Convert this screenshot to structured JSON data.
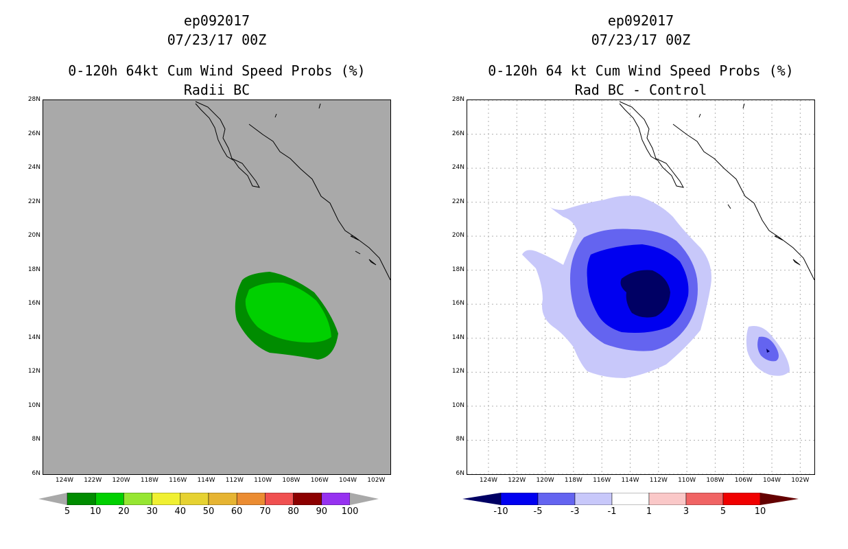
{
  "left_panel": {
    "storm_id": "ep092017",
    "datetime": "07/23/17 00Z",
    "title": "0-120h 64kt Cum Wind Speed Probs (%)",
    "subtitle": "Radii BC",
    "colorbar_labels": [
      "5",
      "10",
      "20",
      "30",
      "40",
      "50",
      "60",
      "70",
      "80",
      "90",
      "100"
    ],
    "colorbar_colors": [
      "#008c00",
      "#00d000",
      "#96e632",
      "#f0f032",
      "#e6d232",
      "#e6b432",
      "#eb8c32",
      "#f05050",
      "#8c0000",
      "#9632f0"
    ]
  },
  "right_panel": {
    "storm_id": "ep092017",
    "datetime": "07/23/17 00Z",
    "title": "0-120h 64 kt Cum Wind Speed Probs (%)",
    "subtitle": "Rad BC - Control",
    "colorbar_labels": [
      "-10",
      "-5",
      "-3",
      "-1",
      "1",
      "3",
      "5",
      "10"
    ],
    "colorbar_colors": [
      "#000064",
      "#0000f0",
      "#6464f0",
      "#c8c8fa",
      "#ffffff",
      "#fac8c8",
      "#f06464",
      "#f00000",
      "#640000"
    ]
  },
  "axes": {
    "y_ticks": [
      "28N",
      "26N",
      "24N",
      "22N",
      "20N",
      "18N",
      "16N",
      "14N",
      "12N",
      "10N",
      "8N",
      "6N"
    ],
    "x_ticks": [
      "124W",
      "122W",
      "120W",
      "118W",
      "116W",
      "114W",
      "112W",
      "110W",
      "108W",
      "106W",
      "104W",
      "102W"
    ],
    "lat_range": [
      6,
      28
    ],
    "lon_range": [
      -125.5,
      -101
    ]
  }
}
